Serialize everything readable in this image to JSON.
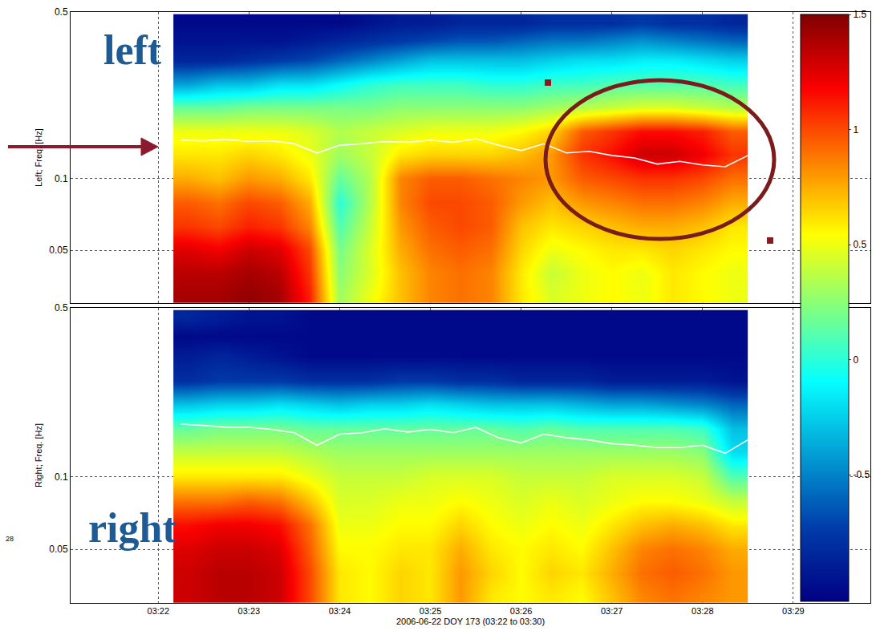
{
  "chart_data": [
    {
      "type": "heatmap",
      "annotations": [
        "left"
      ],
      "y_label": "Left; Freq. [Hz]",
      "x": [
        "2006-06-22 03:22:20",
        "2006-06-22 03:22:40",
        "2006-06-22 03:23:00",
        "2006-06-22 03:23:20",
        "2006-06-22 03:23:40",
        "2006-06-22 03:24:00",
        "2006-06-22 03:24:20",
        "2006-06-22 03:24:40",
        "2006-06-22 03:25:00",
        "2006-06-22 03:25:20",
        "2006-06-22 03:25:40",
        "2006-06-22 03:26:00",
        "2006-06-22 03:26:20",
        "2006-06-22 03:26:40",
        "2006-06-22 03:27:00",
        "2006-06-22 03:27:20",
        "2006-06-22 03:27:40",
        "2006-06-22 03:28:00",
        "2006-06-22 03:28:20"
      ],
      "y": [
        0.032,
        0.04,
        0.05,
        0.063,
        0.079,
        0.1,
        0.126,
        0.158,
        0.2,
        0.25,
        0.316,
        0.38,
        0.45
      ],
      "z": [
        [
          1.4,
          1.4,
          1.45,
          1.4,
          1.1,
          0.3,
          0.5,
          0.7,
          0.85,
          0.9,
          0.85,
          0.6,
          0.45,
          0.5,
          0.55,
          0.5,
          0.6,
          0.55,
          0.5
        ],
        [
          1.35,
          1.35,
          1.4,
          1.35,
          1.05,
          0.25,
          0.45,
          0.7,
          0.85,
          0.9,
          0.85,
          0.6,
          0.4,
          0.5,
          0.55,
          0.5,
          0.6,
          0.55,
          0.5
        ],
        [
          1.25,
          1.2,
          1.3,
          1.25,
          1.0,
          0.2,
          0.45,
          0.75,
          0.9,
          0.95,
          0.9,
          0.65,
          0.5,
          0.55,
          0.6,
          0.6,
          0.65,
          0.6,
          0.55
        ],
        [
          1.05,
          1.0,
          1.1,
          1.05,
          0.85,
          0.1,
          0.4,
          0.8,
          0.95,
          1.0,
          0.95,
          0.7,
          0.6,
          0.65,
          0.7,
          0.75,
          0.75,
          0.7,
          0.6
        ],
        [
          0.95,
          0.9,
          1.0,
          0.95,
          0.75,
          0.0,
          0.35,
          0.85,
          1.0,
          1.0,
          0.95,
          0.8,
          0.7,
          0.8,
          0.85,
          0.9,
          0.9,
          0.85,
          0.75
        ],
        [
          0.75,
          0.7,
          0.8,
          0.75,
          0.6,
          0.15,
          0.35,
          0.85,
          0.95,
          0.95,
          0.9,
          0.85,
          0.8,
          0.95,
          1.0,
          1.05,
          1.05,
          1.0,
          0.9
        ],
        [
          0.6,
          0.6,
          0.65,
          0.6,
          0.5,
          0.3,
          0.4,
          0.6,
          0.65,
          0.65,
          0.65,
          0.7,
          0.8,
          1.05,
          1.15,
          1.3,
          1.3,
          1.2,
          1.05
        ],
        [
          0.5,
          0.5,
          0.5,
          0.5,
          0.45,
          0.35,
          0.4,
          0.45,
          0.5,
          0.5,
          0.5,
          0.55,
          0.65,
          0.95,
          1.05,
          1.15,
          1.15,
          1.1,
          0.95
        ],
        [
          0.15,
          0.15,
          0.2,
          0.2,
          0.2,
          0.2,
          0.2,
          0.25,
          0.25,
          0.25,
          0.25,
          0.25,
          0.3,
          0.35,
          0.4,
          0.45,
          0.45,
          0.4,
          0.35
        ],
        [
          -0.4,
          -0.3,
          -0.3,
          -0.2,
          -0.2,
          -0.1,
          0.0,
          0.05,
          0.05,
          0.05,
          0.0,
          0.0,
          0.05,
          0.05,
          0.1,
          0.1,
          0.1,
          0.1,
          0.05
        ],
        [
          -0.85,
          -0.85,
          -0.8,
          -0.75,
          -0.7,
          -0.6,
          -0.5,
          -0.4,
          -0.3,
          -0.3,
          -0.3,
          -0.3,
          -0.25,
          -0.2,
          -0.2,
          -0.15,
          -0.15,
          -0.2,
          -0.25
        ],
        [
          -0.95,
          -0.95,
          -0.95,
          -0.95,
          -0.9,
          -0.85,
          -0.8,
          -0.75,
          -0.7,
          -0.65,
          -0.65,
          -0.6,
          -0.55,
          -0.55,
          -0.5,
          -0.45,
          -0.5,
          -0.55,
          -0.6
        ],
        [
          -1.0,
          -1.0,
          -1.0,
          -1.0,
          -1.0,
          -1.0,
          -0.95,
          -0.9,
          -0.9,
          -0.85,
          -0.85,
          -0.85,
          -0.8,
          -0.8,
          -0.8,
          -0.75,
          -0.8,
          -0.8,
          -0.85
        ]
      ],
      "zlim": [
        -1.05,
        1.5
      ],
      "zticks": [
        -0.5,
        0,
        0.5,
        1,
        1.5
      ],
      "series": [
        {
          "type": "line",
          "color": "white",
          "x": [
            "2006-06-22 03:22:15",
            "2006-06-22 03:22:30",
            "2006-06-22 03:22:45",
            "2006-06-22 03:23:00",
            "2006-06-22 03:23:15",
            "2006-06-22 03:23:30",
            "2006-06-22 03:23:45",
            "2006-06-22 03:24:00",
            "2006-06-22 03:24:15",
            "2006-06-22 03:24:30",
            "2006-06-22 03:24:45",
            "2006-06-22 03:25:00",
            "2006-06-22 03:25:15",
            "2006-06-22 03:25:30",
            "2006-06-22 03:25:45",
            "2006-06-22 03:26:00",
            "2006-06-22 03:26:15",
            "2006-06-22 03:26:30",
            "2006-06-22 03:26:45",
            "2006-06-22 03:27:00",
            "2006-06-22 03:27:15",
            "2006-06-22 03:27:30",
            "2006-06-22 03:27:45",
            "2006-06-22 03:28:00",
            "2006-06-22 03:28:15",
            "2006-06-22 03:28:30"
          ],
          "values": [
            0.145,
            0.144,
            0.146,
            0.143,
            0.144,
            0.14,
            0.128,
            0.138,
            0.14,
            0.143,
            0.142,
            0.145,
            0.142,
            0.147,
            0.138,
            0.131,
            0.14,
            0.128,
            0.13,
            0.125,
            0.122,
            0.115,
            0.118,
            0.114,
            0.112,
            0.125
          ]
        }
      ],
      "xlim": [
        "2006-06-22 03:21:02",
        "2006-06-22 03:29:51"
      ],
      "xticks": [
        {
          "value": "2006-06-22 03:22",
          "label": "03:22"
        },
        {
          "value": "2006-06-22 03:23",
          "label": "03:23"
        },
        {
          "value": "2006-06-22 03:24",
          "label": "03:24"
        },
        {
          "value": "2006-06-22 03:25",
          "label": "03:25"
        },
        {
          "value": "2006-06-22 03:26",
          "label": "03:26"
        },
        {
          "value": "2006-06-22 03:27",
          "label": "03:27"
        },
        {
          "value": "2006-06-22 03:28",
          "label": "03:28"
        },
        {
          "value": "2006-06-22 03:29",
          "label": "03:29"
        }
      ],
      "ylim": [
        0.03,
        0.5
      ],
      "yticks": [
        0.05,
        0.1,
        0.5
      ],
      "log": "y",
      "grid": true,
      "tick_labels": "y"
    },
    {
      "type": "heatmap",
      "annotations": [
        "right",
        "28"
      ],
      "y_label": "Right; Freq. [Hz]",
      "x_label": "2006-06-22 DOY 173 (03:22 to 03:30)",
      "x": [
        "2006-06-22 03:22:20",
        "2006-06-22 03:22:40",
        "2006-06-22 03:23:00",
        "2006-06-22 03:23:20",
        "2006-06-22 03:23:40",
        "2006-06-22 03:24:00",
        "2006-06-22 03:24:20",
        "2006-06-22 03:24:40",
        "2006-06-22 03:25:00",
        "2006-06-22 03:25:20",
        "2006-06-22 03:25:40",
        "2006-06-22 03:26:00",
        "2006-06-22 03:26:20",
        "2006-06-22 03:26:40",
        "2006-06-22 03:27:00",
        "2006-06-22 03:27:20",
        "2006-06-22 03:27:40",
        "2006-06-22 03:28:00",
        "2006-06-22 03:28:20"
      ],
      "y": [
        0.032,
        0.04,
        0.05,
        0.063,
        0.079,
        0.1,
        0.126,
        0.158,
        0.2,
        0.25,
        0.316,
        0.38,
        0.45
      ],
      "z": [
        [
          1.3,
          1.35,
          1.35,
          1.3,
          1.0,
          0.6,
          0.55,
          0.65,
          0.6,
          0.8,
          0.6,
          0.55,
          0.6,
          0.55,
          0.7,
          0.85,
          0.9,
          0.85,
          0.8
        ],
        [
          1.3,
          1.35,
          1.35,
          1.3,
          1.0,
          0.6,
          0.55,
          0.65,
          0.6,
          0.8,
          0.65,
          0.55,
          0.65,
          0.6,
          0.75,
          0.9,
          0.95,
          0.9,
          0.8
        ],
        [
          1.25,
          1.3,
          1.3,
          1.25,
          0.95,
          0.55,
          0.55,
          0.6,
          0.6,
          0.75,
          0.6,
          0.55,
          0.6,
          0.55,
          0.7,
          0.85,
          0.9,
          0.85,
          0.75
        ],
        [
          1.15,
          1.2,
          1.2,
          1.15,
          0.9,
          0.5,
          0.5,
          0.55,
          0.55,
          0.65,
          0.55,
          0.5,
          0.55,
          0.5,
          0.6,
          0.7,
          0.75,
          0.7,
          0.6
        ],
        [
          0.9,
          0.9,
          0.95,
          0.9,
          0.7,
          0.45,
          0.45,
          0.5,
          0.5,
          0.55,
          0.5,
          0.45,
          0.5,
          0.45,
          0.5,
          0.55,
          0.55,
          0.5,
          0.4
        ],
        [
          0.6,
          0.6,
          0.6,
          0.6,
          0.5,
          0.4,
          0.4,
          0.4,
          0.45,
          0.45,
          0.45,
          0.4,
          0.4,
          0.4,
          0.45,
          0.45,
          0.45,
          0.4,
          0.1
        ],
        [
          0.4,
          0.4,
          0.4,
          0.4,
          0.35,
          0.3,
          0.3,
          0.3,
          0.3,
          0.3,
          0.3,
          0.3,
          0.3,
          0.3,
          0.3,
          0.3,
          0.3,
          0.25,
          -0.2
        ],
        [
          0.15,
          0.2,
          0.2,
          0.2,
          0.15,
          0.15,
          0.15,
          0.15,
          0.15,
          0.15,
          0.15,
          0.1,
          0.15,
          0.1,
          0.1,
          0.1,
          0.1,
          0.05,
          -0.3
        ],
        [
          -0.3,
          -0.25,
          -0.25,
          -0.2,
          -0.25,
          -0.3,
          -0.25,
          -0.25,
          -0.2,
          -0.25,
          -0.3,
          -0.3,
          -0.3,
          -0.35,
          -0.4,
          -0.4,
          -0.45,
          -0.5,
          -0.6
        ],
        [
          -0.8,
          -0.75,
          -0.75,
          -0.75,
          -0.8,
          -0.8,
          -0.8,
          -0.75,
          -0.75,
          -0.8,
          -0.8,
          -0.85,
          -0.85,
          -0.85,
          -0.9,
          -0.9,
          -0.9,
          -0.9,
          -0.95
        ],
        [
          -0.9,
          -0.85,
          -0.9,
          -0.95,
          -1.0,
          -1.0,
          -1.0,
          -1.0,
          -1.0,
          -1.0,
          -1.0,
          -1.0,
          -1.0,
          -1.0,
          -1.0,
          -1.0,
          -1.0,
          -1.0,
          -1.0
        ],
        [
          -1.0,
          -1.0,
          -1.0,
          -1.0,
          -1.0,
          -1.0,
          -1.0,
          -1.0,
          -1.0,
          -1.0,
          -1.0,
          -1.0,
          -1.0,
          -1.0,
          -1.0,
          -1.0,
          -1.0,
          -1.0,
          -1.0
        ],
        [
          -0.85,
          -0.9,
          -0.95,
          -0.95,
          -1.0,
          -1.0,
          -1.0,
          -1.0,
          -1.0,
          -1.0,
          -1.0,
          -1.0,
          -1.0,
          -1.0,
          -1.0,
          -1.0,
          -1.0,
          -1.0,
          -1.0
        ]
      ],
      "zlim": [
        -1.05,
        1.5
      ],
      "series": [
        {
          "type": "line",
          "color": "white",
          "x": [
            "2006-06-22 03:22:15",
            "2006-06-22 03:22:30",
            "2006-06-22 03:22:45",
            "2006-06-22 03:23:00",
            "2006-06-22 03:23:15",
            "2006-06-22 03:23:30",
            "2006-06-22 03:23:45",
            "2006-06-22 03:24:00",
            "2006-06-22 03:24:15",
            "2006-06-22 03:24:30",
            "2006-06-22 03:24:45",
            "2006-06-22 03:25:00",
            "2006-06-22 03:25:15",
            "2006-06-22 03:25:30",
            "2006-06-22 03:25:45",
            "2006-06-22 03:26:00",
            "2006-06-22 03:26:15",
            "2006-06-22 03:26:30",
            "2006-06-22 03:26:45",
            "2006-06-22 03:27:00",
            "2006-06-22 03:27:15",
            "2006-06-22 03:27:30",
            "2006-06-22 03:27:45",
            "2006-06-22 03:28:00",
            "2006-06-22 03:28:15",
            "2006-06-22 03:28:30"
          ],
          "values": [
            0.165,
            0.163,
            0.16,
            0.16,
            0.157,
            0.152,
            0.135,
            0.15,
            0.152,
            0.158,
            0.153,
            0.157,
            0.152,
            0.16,
            0.145,
            0.138,
            0.15,
            0.145,
            0.142,
            0.137,
            0.135,
            0.132,
            0.132,
            0.135,
            0.125,
            0.142
          ]
        }
      ],
      "xlim": [
        "2006-06-22 03:21:02",
        "2006-06-22 03:29:51"
      ],
      "xticks": [
        {
          "value": "2006-06-22 03:22",
          "label": "03:22"
        },
        {
          "value": "2006-06-22 03:23",
          "label": "03:23"
        },
        {
          "value": "2006-06-22 03:24",
          "label": "03:24"
        },
        {
          "value": "2006-06-22 03:25",
          "label": "03:25"
        },
        {
          "value": "2006-06-22 03:26",
          "label": "03:26"
        },
        {
          "value": "2006-06-22 03:27",
          "label": "03:27"
        },
        {
          "value": "2006-06-22 03:28",
          "label": "03:28"
        },
        {
          "value": "2006-06-22 03:29",
          "label": "03:29"
        }
      ],
      "ylim": [
        0.03,
        0.5
      ],
      "yticks": [
        0.05,
        0.1,
        0.5
      ],
      "log": "y",
      "grid": true
    }
  ]
}
